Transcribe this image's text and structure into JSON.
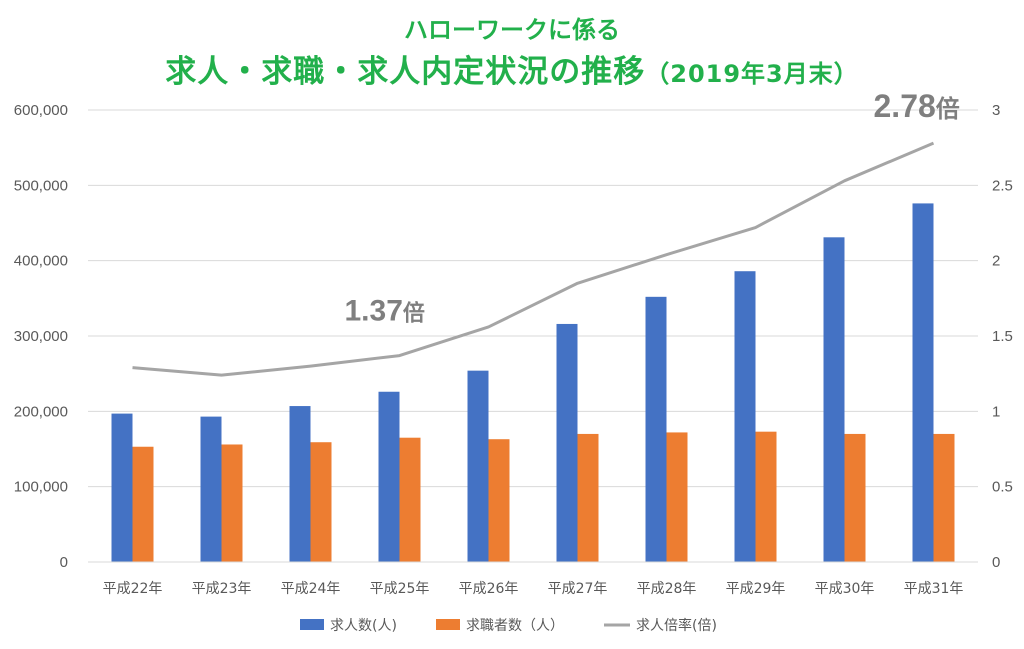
{
  "title_line1": "ハローワークに係る",
  "title_line2_main": "求人・求職・求人内定状況の推移",
  "title_line2_sub": "（2019年3月末）",
  "colors": {
    "bars_jobs": "#4472C4",
    "bars_seekers": "#ED7D31",
    "ratio_line": "#A5A5A5",
    "title": "#22B04B"
  },
  "chart_data": {
    "type": "bar",
    "categories": [
      "平成22年",
      "平成23年",
      "平成24年",
      "平成25年",
      "平成26年",
      "平成27年",
      "平成28年",
      "平成29年",
      "平成30年",
      "平成31年"
    ],
    "series": [
      {
        "name": "求人数(人)",
        "axis": "left",
        "type": "bar",
        "values": [
          197000,
          193000,
          207000,
          226000,
          254000,
          316000,
          352000,
          386000,
          431000,
          476000
        ]
      },
      {
        "name": "求職者数（人）",
        "axis": "left",
        "type": "bar",
        "values": [
          153000,
          156000,
          159000,
          165000,
          163000,
          170000,
          172000,
          173000,
          170000,
          170000
        ]
      },
      {
        "name": "求人倍率(倍)",
        "axis": "right",
        "type": "line",
        "values": [
          1.29,
          1.24,
          1.3,
          1.37,
          1.56,
          1.85,
          2.04,
          2.22,
          2.53,
          2.78
        ]
      }
    ],
    "ylim_left": [
      0,
      600000
    ],
    "yticks_left": [
      "0",
      "100,000",
      "200,000",
      "300,000",
      "400,000",
      "500,000",
      "600,000"
    ],
    "ylim_right": [
      0,
      3
    ],
    "yticks_right": [
      "0",
      "0.5",
      "1",
      "1.5",
      "2",
      "2.5",
      "3"
    ],
    "annotations": [
      {
        "text_num": "1.37",
        "text_unit": "倍",
        "category_index": 3
      },
      {
        "text_num": "2.78",
        "text_unit": "倍",
        "category_index": 9
      }
    ],
    "legend_position": "bottom",
    "grid": true
  }
}
